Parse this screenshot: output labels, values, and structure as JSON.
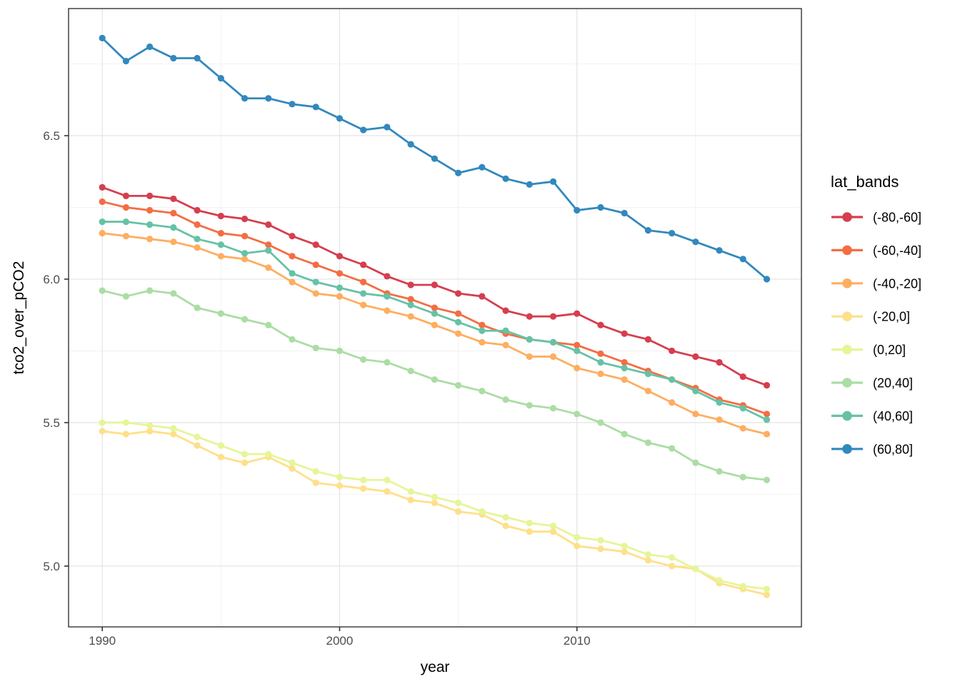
{
  "figure": {
    "x_axis_title": "year",
    "y_axis_title": "tco2_over_pCO2",
    "legend_title": "lat_bands"
  },
  "chart_data": {
    "type": "line",
    "title": "",
    "xlabel": "year",
    "ylabel": "tco2_over_pCO2",
    "grid": true,
    "legend_position": "right",
    "x": [
      1990,
      1991,
      1992,
      1993,
      1994,
      1995,
      1996,
      1997,
      1998,
      1999,
      2000,
      2001,
      2002,
      2003,
      2004,
      2005,
      2006,
      2007,
      2008,
      2009,
      2010,
      2011,
      2012,
      2013,
      2014,
      2015,
      2016,
      2017,
      2018
    ],
    "series": [
      {
        "name": "(-80,-60]",
        "color": "#d53e4f",
        "values": [
          6.32,
          6.29,
          6.29,
          6.28,
          6.24,
          6.22,
          6.21,
          6.19,
          6.15,
          6.12,
          6.08,
          6.05,
          6.01,
          5.98,
          5.98,
          5.95,
          5.94,
          5.89,
          5.87,
          5.87,
          5.88,
          5.84,
          5.81,
          5.79,
          5.75,
          5.73,
          5.71,
          5.66,
          5.63
        ]
      },
      {
        "name": "(-60,-40]",
        "color": "#f46d43",
        "values": [
          6.27,
          6.25,
          6.24,
          6.23,
          6.19,
          6.16,
          6.15,
          6.12,
          6.08,
          6.05,
          6.02,
          5.99,
          5.95,
          5.93,
          5.9,
          5.88,
          5.84,
          5.81,
          5.79,
          5.78,
          5.77,
          5.74,
          5.71,
          5.68,
          5.65,
          5.62,
          5.58,
          5.56,
          5.53
        ]
      },
      {
        "name": "(-40,-20]",
        "color": "#fdae61",
        "values": [
          6.16,
          6.15,
          6.14,
          6.13,
          6.11,
          6.08,
          6.07,
          6.04,
          5.99,
          5.95,
          5.94,
          5.91,
          5.89,
          5.87,
          5.84,
          5.81,
          5.78,
          5.77,
          5.73,
          5.73,
          5.69,
          5.67,
          5.65,
          5.61,
          5.57,
          5.53,
          5.51,
          5.48,
          5.46
        ]
      },
      {
        "name": "(-20,0]",
        "color": "#fee08b",
        "values": [
          5.47,
          5.46,
          5.47,
          5.46,
          5.42,
          5.38,
          5.36,
          5.38,
          5.34,
          5.29,
          5.28,
          5.27,
          5.26,
          5.23,
          5.22,
          5.19,
          5.18,
          5.14,
          5.12,
          5.12,
          5.07,
          5.06,
          5.05,
          5.02,
          5.0,
          4.99,
          4.94,
          4.92,
          4.9
        ]
      },
      {
        "name": "(0,20]",
        "color": "#e6f598",
        "values": [
          5.5,
          5.5,
          5.49,
          5.48,
          5.45,
          5.42,
          5.39,
          5.39,
          5.36,
          5.33,
          5.31,
          5.3,
          5.3,
          5.26,
          5.24,
          5.22,
          5.19,
          5.17,
          5.15,
          5.14,
          5.1,
          5.09,
          5.07,
          5.04,
          5.03,
          4.99,
          4.95,
          4.93,
          4.92
        ]
      },
      {
        "name": "(20,40]",
        "color": "#abdda4",
        "values": [
          5.96,
          5.94,
          5.96,
          5.95,
          5.9,
          5.88,
          5.86,
          5.84,
          5.79,
          5.76,
          5.75,
          5.72,
          5.71,
          5.68,
          5.65,
          5.63,
          5.61,
          5.58,
          5.56,
          5.55,
          5.53,
          5.5,
          5.46,
          5.43,
          5.41,
          5.36,
          5.33,
          5.31,
          5.3
        ]
      },
      {
        "name": "(40,60]",
        "color": "#66c2a5",
        "values": [
          6.2,
          6.2,
          6.19,
          6.18,
          6.14,
          6.12,
          6.09,
          6.1,
          6.02,
          5.99,
          5.97,
          5.95,
          5.94,
          5.91,
          5.88,
          5.85,
          5.82,
          5.82,
          5.79,
          5.78,
          5.75,
          5.71,
          5.69,
          5.67,
          5.65,
          5.61,
          5.57,
          5.55,
          5.51
        ]
      },
      {
        "name": "(60,80]",
        "color": "#3288bd",
        "values": [
          6.84,
          6.76,
          6.81,
          6.77,
          6.77,
          6.7,
          6.63,
          6.63,
          6.61,
          6.6,
          6.56,
          6.52,
          6.53,
          6.47,
          6.42,
          6.37,
          6.39,
          6.35,
          6.33,
          6.34,
          6.24,
          6.25,
          6.23,
          6.17,
          6.16,
          6.13,
          6.1,
          6.07,
          6.0
        ]
      }
    ],
    "axes": {
      "x": {
        "ticks": [
          1990,
          2000,
          2010
        ],
        "tick_labels": [
          "1990",
          "2000",
          "2010"
        ],
        "minor": [
          1995,
          2005,
          2015
        ],
        "range": [
          1988.58,
          2019.46
        ]
      },
      "y": {
        "ticks": [
          5.0,
          5.5,
          6.0,
          6.5
        ],
        "tick_labels": [
          "5.0",
          "5.5",
          "6.0",
          "6.5"
        ],
        "minor": [
          5.25,
          5.75,
          6.25,
          6.75
        ],
        "range": [
          4.788,
          6.943
        ]
      }
    },
    "legend": {
      "title": "lat_bands",
      "items": [
        {
          "label": "(-80,-60]",
          "color": "#d53e4f"
        },
        {
          "label": "(-60,-40]",
          "color": "#f46d43"
        },
        {
          "label": "(-40,-20]",
          "color": "#fdae61"
        },
        {
          "label": "(-20,0]",
          "color": "#fee08b"
        },
        {
          "label": "(0,20]",
          "color": "#e6f598"
        },
        {
          "label": "(20,40]",
          "color": "#abdda4"
        },
        {
          "label": "(40,60]",
          "color": "#66c2a5"
        },
        {
          "label": "(60,80]",
          "color": "#3288bd"
        }
      ]
    },
    "theme": {
      "background": "#ffffff",
      "panel_border": "#333333",
      "grid_major": "#e3e3e3",
      "grid_minor": "#f1f1f1",
      "tick_color": "#333333",
      "tick_text_color": "#4d4d4d",
      "text_color": "#000000"
    }
  }
}
